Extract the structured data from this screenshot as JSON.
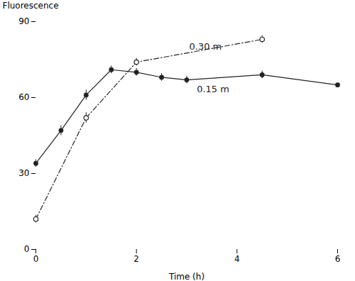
{
  "chart_data": {
    "type": "line",
    "xlabel": "Time (h)",
    "ylabel": "Fluorescence",
    "xlim": [
      0,
      6
    ],
    "ylim": [
      0,
      90
    ],
    "xticks": [
      0,
      2,
      4,
      6
    ],
    "yticks": [
      0,
      30,
      60,
      90
    ],
    "grid": false,
    "legend": false,
    "series": [
      {
        "name": "0.15 m",
        "color": "#222222",
        "marker": "circle",
        "line_style": "solid",
        "x": [
          0,
          0.5,
          1.0,
          1.5,
          2.0,
          2.5,
          3.0,
          4.5,
          6.0
        ],
        "values": [
          34,
          47,
          61,
          71,
          70,
          68,
          67,
          69,
          65
        ],
        "yerr": [
          1.5,
          2.0,
          2.0,
          1.5,
          1.5,
          1.5,
          1.5,
          1.5,
          1.5
        ]
      },
      {
        "name": "0.30 m",
        "color": "#222222",
        "marker": "circle-open",
        "line_style": "dashdot",
        "x": [
          0,
          1.0,
          2.0,
          4.5
        ],
        "values": [
          12,
          52,
          74,
          83
        ],
        "yerr": [
          1.5,
          2.0,
          1.5,
          1.5
        ]
      }
    ],
    "annotations": [
      {
        "text": "0.30 m",
        "x": 3.05,
        "y": 79
      },
      {
        "text": "0.15 m",
        "x": 3.2,
        "y": 62
      }
    ]
  }
}
